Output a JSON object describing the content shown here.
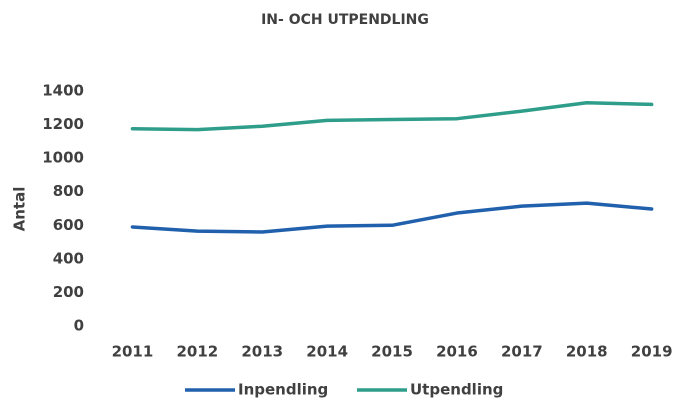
{
  "chart_data": {
    "type": "line",
    "title": "IN- OCH UTPENDLING",
    "y_label": "Antal",
    "categories": [
      "2011",
      "2012",
      "2013",
      "2014",
      "2015",
      "2016",
      "2017",
      "2018",
      "2019"
    ],
    "series": [
      {
        "name": "Inpendling",
        "color": "#2160ac",
        "values": [
          590,
          565,
          560,
          595,
          600,
          673,
          714,
          732,
          697
        ]
      },
      {
        "name": "Utpendling",
        "color": "#2e9e8a",
        "values": [
          1175,
          1170,
          1190,
          1225,
          1230,
          1235,
          1280,
          1330,
          1320
        ]
      }
    ],
    "ylim": [
      0,
      1400
    ],
    "yticks": [
      0,
      200,
      400,
      600,
      800,
      1000,
      1200,
      1400
    ],
    "grid": false,
    "legend": "bottom"
  }
}
